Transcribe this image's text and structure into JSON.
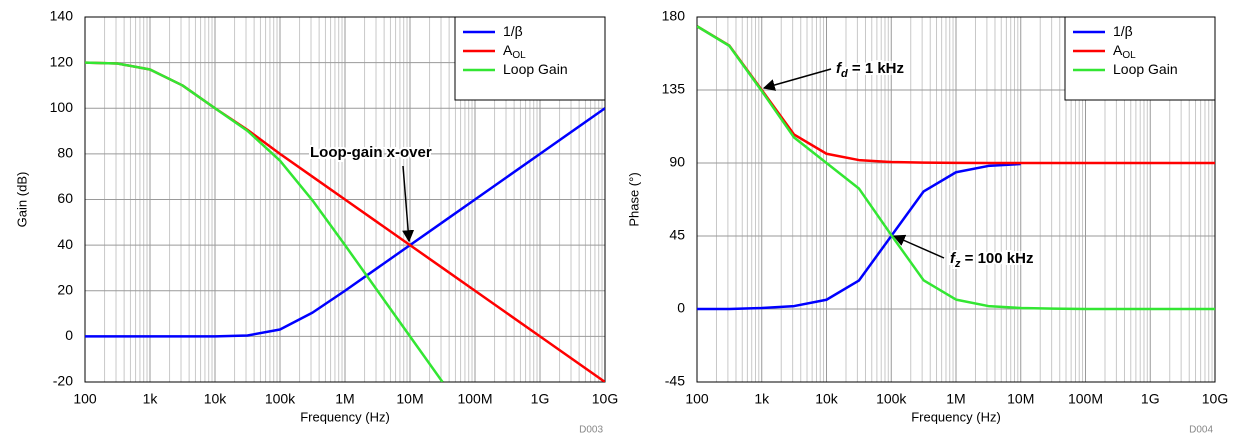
{
  "chart_data": [
    {
      "type": "line",
      "ylabel": "Gain (dB)",
      "xlabel": "Frequency (Hz)",
      "footnote": "D003",
      "log_x": true,
      "grid": true,
      "minor_grid": true,
      "xlim": [
        100,
        10000000000
      ],
      "xticks": [
        100,
        {
          "value": 1000,
          "label": "1k"
        },
        {
          "value": 10000,
          "label": "10k"
        },
        {
          "value": 100000,
          "label": "100k"
        },
        {
          "value": 1000000,
          "label": "1M"
        },
        {
          "value": 10000000,
          "label": "10M"
        },
        {
          "value": 100000000,
          "label": "100M"
        },
        {
          "value": 1000000000,
          "label": "1G"
        },
        {
          "value": 10000000000,
          "label": "10G"
        }
      ],
      "ylim": [
        -20,
        140
      ],
      "yticks": [
        -20,
        0,
        20,
        40,
        60,
        80,
        100,
        120,
        140
      ],
      "legend": "upper right",
      "x": [
        100,
        316,
        1000,
        3162,
        10000,
        31623,
        100000,
        316228,
        1000000,
        3162278,
        10000000,
        31622777,
        100000000,
        1000000000,
        10000000000
      ],
      "series": [
        {
          "name": "1/β",
          "color": "#0000ff",
          "values": [
            0,
            0,
            0,
            0,
            0,
            0.4,
            3,
            10.4,
            20,
            30,
            40,
            50,
            60,
            80,
            100
          ]
        },
        {
          "name": "A",
          "subscript": "OL",
          "color": "#ff0000",
          "values": [
            120,
            119.6,
            117,
            110,
            100,
            90.5,
            80,
            70,
            60,
            50,
            40,
            30,
            20,
            0,
            -20
          ]
        },
        {
          "name": "Loop Gain",
          "color": "#33e633",
          "values": [
            120,
            119.6,
            117,
            110,
            100,
            90.1,
            77,
            59.6,
            40,
            20,
            0,
            -20,
            null,
            null,
            null
          ]
        }
      ],
      "annotations": [
        {
          "text": "Loop-gain x-over"
        }
      ]
    },
    {
      "type": "line",
      "ylabel": "Phase (°)",
      "xlabel": "Frequency (Hz)",
      "footnote": "D004",
      "log_x": true,
      "grid": true,
      "minor_grid": true,
      "xlim": [
        100,
        10000000000
      ],
      "xticks": [
        100,
        {
          "value": 1000,
          "label": "1k"
        },
        {
          "value": 10000,
          "label": "10k"
        },
        {
          "value": 100000,
          "label": "100k"
        },
        {
          "value": 1000000,
          "label": "1M"
        },
        {
          "value": 10000000,
          "label": "10M"
        },
        {
          "value": 100000000,
          "label": "100M"
        },
        {
          "value": 1000000000,
          "label": "1G"
        },
        {
          "value": 10000000000,
          "label": "10G"
        }
      ],
      "ylim": [
        -45,
        180
      ],
      "yticks": [
        -45,
        0,
        45,
        90,
        135,
        180
      ],
      "legend": "upper right",
      "x": [
        100,
        316,
        1000,
        3162,
        10000,
        31623,
        100000,
        316228,
        1000000,
        3162278,
        10000000,
        31622777,
        100000000,
        1000000000,
        10000000000
      ],
      "series": [
        {
          "name": "1/β",
          "color": "#0000ff",
          "values": [
            0,
            0,
            0.6,
            1.8,
            5.7,
            17.5,
            45,
            72.5,
            84.3,
            88.2,
            89.4,
            null,
            null,
            null,
            null
          ]
        },
        {
          "name": "A",
          "subscript": "OL",
          "color": "#ff0000",
          "values": [
            174.3,
            162.4,
            135,
            107.5,
            95.7,
            91.8,
            90.6,
            90.2,
            90.1,
            90,
            90,
            90,
            90,
            90,
            90
          ]
        },
        {
          "name": "Loop Gain",
          "color": "#33e633",
          "values": [
            174.3,
            162.2,
            134.4,
            105.7,
            90,
            74.3,
            45.6,
            17.7,
            5.8,
            1.8,
            0.6,
            0.2,
            0,
            0,
            0
          ]
        }
      ],
      "annotations": [
        {
          "text": "f",
          "subscript": "d",
          "rest": " = 1 kHz"
        },
        {
          "text": "f",
          "subscript": "z",
          "rest": " = 100 kHz"
        }
      ]
    }
  ]
}
